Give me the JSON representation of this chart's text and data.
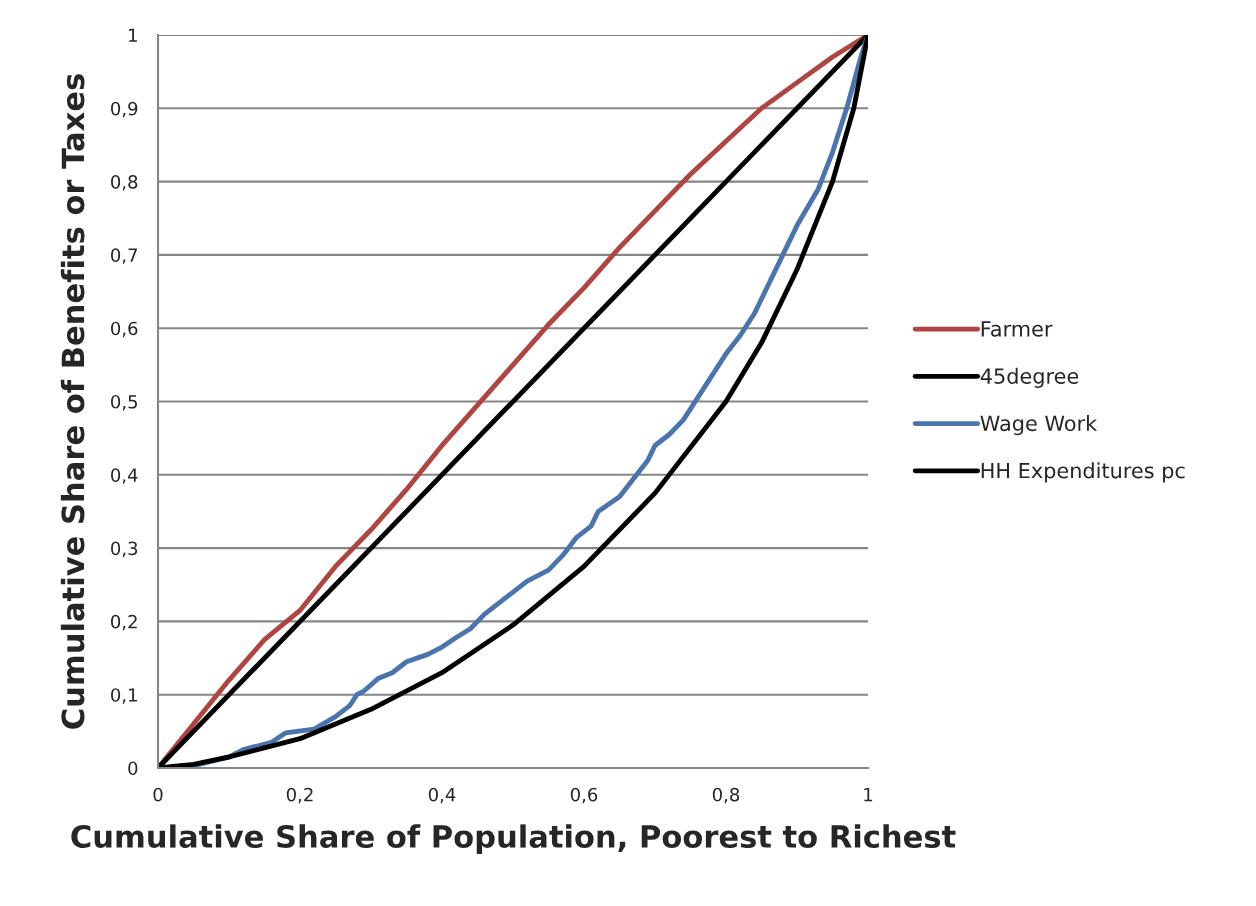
{
  "chart_data": {
    "type": "line",
    "xlabel": "Cumulative Share of Population, Poorest to Richest",
    "ylabel": "Cumulative Share of Benefits or Taxes",
    "xlim": [
      0,
      1
    ],
    "ylim": [
      0,
      1
    ],
    "xticks": [
      0,
      {
        "value": 0.2,
        "label": "0,2"
      },
      {
        "value": 0.4,
        "label": "0,4"
      },
      {
        "value": 0.6,
        "label": "0,6"
      },
      {
        "value": 0.8,
        "label": "0,8"
      },
      1
    ],
    "yticks": [
      0,
      {
        "value": 0.1,
        "label": "0,1"
      },
      {
        "value": 0.2,
        "label": "0,2"
      },
      {
        "value": 0.3,
        "label": "0,3"
      },
      {
        "value": 0.4,
        "label": "0,4"
      },
      {
        "value": 0.5,
        "label": "0,5"
      },
      {
        "value": 0.6,
        "label": "0,6"
      },
      {
        "value": 0.7,
        "label": "0,7"
      },
      {
        "value": 0.8,
        "label": "0,8"
      },
      {
        "value": 0.9,
        "label": "0,9"
      },
      1
    ],
    "grid": "y",
    "legend": "right",
    "marker": "none",
    "line_style": "solid",
    "series": [
      {
        "name": "Farmer",
        "color": "#b04440",
        "x": [
          0,
          0.05,
          0.1,
          0.15,
          0.2,
          0.25,
          0.3,
          0.35,
          0.4,
          0.45,
          0.5,
          0.55,
          0.6,
          0.65,
          0.7,
          0.75,
          0.8,
          0.85,
          0.9,
          0.95,
          1
        ],
        "values": [
          0,
          0.06,
          0.12,
          0.175,
          0.215,
          0.275,
          0.325,
          0.38,
          0.44,
          0.495,
          0.55,
          0.605,
          0.655,
          0.71,
          0.76,
          0.81,
          0.855,
          0.9,
          0.935,
          0.97,
          1
        ]
      },
      {
        "name": "45degree",
        "color": "#000000",
        "x": [
          0,
          1
        ],
        "values": [
          0,
          1
        ]
      },
      {
        "name": "Wage Work",
        "color": "#4a74ad",
        "x": [
          0,
          0.05,
          0.1,
          0.12,
          0.16,
          0.18,
          0.22,
          0.25,
          0.27,
          0.28,
          0.29,
          0.31,
          0.33,
          0.35,
          0.38,
          0.4,
          0.42,
          0.44,
          0.46,
          0.48,
          0.5,
          0.52,
          0.55,
          0.57,
          0.59,
          0.61,
          0.62,
          0.65,
          0.67,
          0.69,
          0.7,
          0.72,
          0.74,
          0.76,
          0.78,
          0.8,
          0.82,
          0.84,
          0.86,
          0.88,
          0.9,
          0.93,
          0.95,
          0.97,
          0.99,
          1
        ],
        "values": [
          0,
          0.003,
          0.015,
          0.025,
          0.035,
          0.048,
          0.053,
          0.07,
          0.085,
          0.1,
          0.105,
          0.122,
          0.13,
          0.145,
          0.155,
          0.165,
          0.178,
          0.19,
          0.21,
          0.225,
          0.24,
          0.255,
          0.27,
          0.29,
          0.315,
          0.33,
          0.35,
          0.37,
          0.395,
          0.42,
          0.44,
          0.455,
          0.475,
          0.505,
          0.535,
          0.565,
          0.59,
          0.62,
          0.66,
          0.7,
          0.74,
          0.79,
          0.84,
          0.9,
          0.97,
          1
        ]
      },
      {
        "name": "HH Expenditures pc",
        "color": "#000000",
        "x": [
          0,
          0.05,
          0.1,
          0.2,
          0.3,
          0.4,
          0.5,
          0.6,
          0.7,
          0.8,
          0.85,
          0.9,
          0.95,
          0.98,
          1
        ],
        "values": [
          0,
          0.005,
          0.015,
          0.04,
          0.08,
          0.13,
          0.195,
          0.275,
          0.375,
          0.5,
          0.58,
          0.68,
          0.8,
          0.9,
          1
        ]
      }
    ]
  }
}
